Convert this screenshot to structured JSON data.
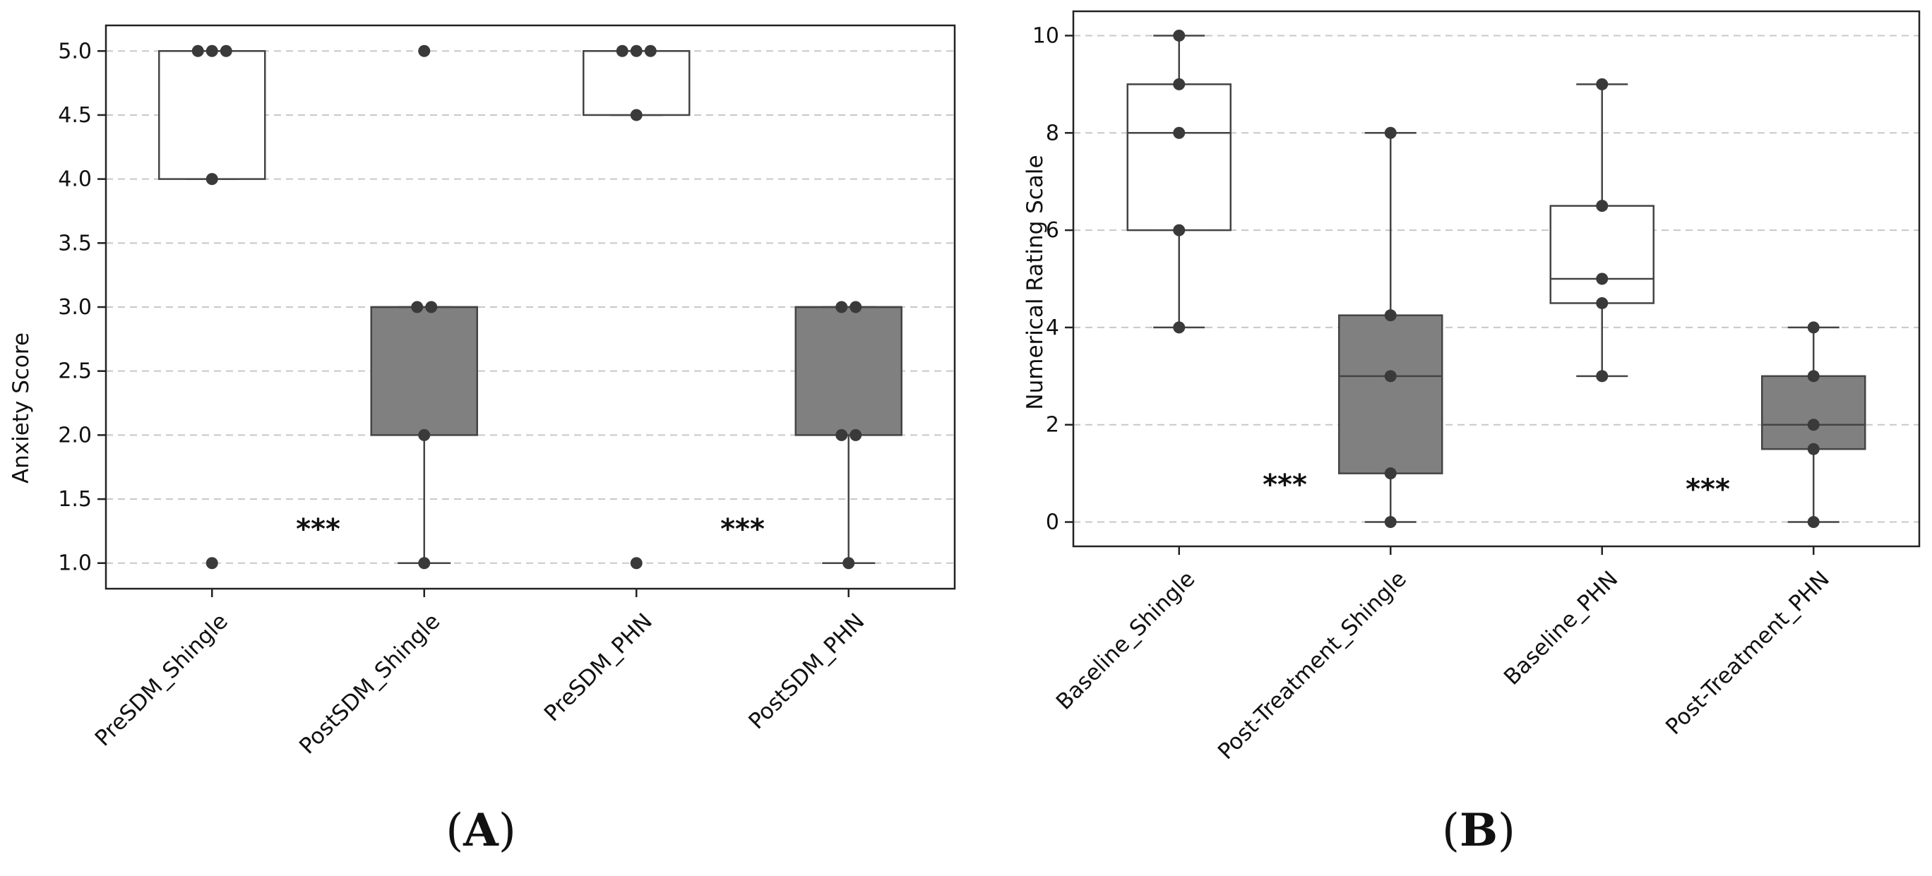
{
  "chart_data": [
    {
      "type": "box",
      "panel_label": "(A)",
      "panel_letter": "A",
      "title": "",
      "xlabel": "",
      "ylabel": "Anxiety Score",
      "ylim": [
        0.8,
        5.2
      ],
      "yticks": [
        1.0,
        1.5,
        2.0,
        2.5,
        3.0,
        3.5,
        4.0,
        4.5,
        5.0
      ],
      "ytick_labels": [
        "1.0",
        "1.5",
        "2.0",
        "2.5",
        "3.0",
        "3.5",
        "4.0",
        "4.5",
        "5.0"
      ],
      "grid": true,
      "categories": [
        "PreSDM_Shingle",
        "PostSDM_Shingle",
        "PreSDM_PHN",
        "PostSDM_PHN"
      ],
      "boxes": [
        {
          "q1": 4.0,
          "median": 5.0,
          "q3": 5.0,
          "whisker_low": 4.0,
          "whisker_high": 5.0,
          "fill": "#ffffff"
        },
        {
          "q1": 2.0,
          "median": 3.0,
          "q3": 3.0,
          "whisker_low": 1.0,
          "whisker_high": 3.0,
          "fill": "#808080"
        },
        {
          "q1": 4.5,
          "median": 5.0,
          "q3": 5.0,
          "whisker_low": 4.5,
          "whisker_high": 5.0,
          "fill": "#ffffff"
        },
        {
          "q1": 2.0,
          "median": 3.0,
          "q3": 3.0,
          "whisker_low": 1.0,
          "whisker_high": 3.0,
          "fill": "#808080"
        }
      ],
      "points": [
        [
          5.0,
          5.0,
          5.0,
          4.0,
          1.0
        ],
        [
          5.0,
          3.0,
          3.0,
          2.0,
          1.0
        ],
        [
          5.0,
          5.0,
          5.0,
          4.5,
          1.0
        ],
        [
          3.0,
          3.0,
          2.0,
          2.0,
          1.0
        ]
      ],
      "annotations": [
        {
          "text": "***",
          "between": [
            0,
            1
          ],
          "y": 1.27
        },
        {
          "text": "***",
          "between": [
            2,
            3
          ],
          "y": 1.27
        }
      ]
    },
    {
      "type": "box",
      "panel_label": "(B)",
      "panel_letter": "B",
      "title": "",
      "xlabel": "",
      "ylabel": "Numerical Rating Scale",
      "ylim": [
        -0.5,
        10.5
      ],
      "yticks": [
        0,
        2,
        4,
        6,
        8,
        10
      ],
      "ytick_labels": [
        "0",
        "2",
        "4",
        "6",
        "8",
        "10"
      ],
      "grid": true,
      "categories": [
        "Baseline_Shingle",
        "Post-Treatment_Shingle",
        "Baseline_PHN",
        "Post-Treatment_PHN"
      ],
      "boxes": [
        {
          "q1": 6.0,
          "median": 8.0,
          "q3": 9.0,
          "whisker_low": 4.0,
          "whisker_high": 10.0,
          "fill": "#ffffff"
        },
        {
          "q1": 1.0,
          "median": 3.0,
          "q3": 4.25,
          "whisker_low": 0.0,
          "whisker_high": 8.0,
          "fill": "#808080"
        },
        {
          "q1": 4.5,
          "median": 5.0,
          "q3": 6.5,
          "whisker_low": 3.0,
          "whisker_high": 9.0,
          "fill": "#ffffff"
        },
        {
          "q1": 1.5,
          "median": 2.0,
          "q3": 3.0,
          "whisker_low": 0.0,
          "whisker_high": 4.0,
          "fill": "#808080"
        }
      ],
      "points": [
        [
          10,
          9,
          8,
          6,
          4
        ],
        [
          8,
          4.25,
          3,
          1,
          0
        ],
        [
          9,
          6.5,
          5,
          4.5,
          3
        ],
        [
          4,
          3,
          2,
          1.5,
          0
        ]
      ],
      "annotations": [
        {
          "text": "***",
          "between": [
            0,
            1
          ],
          "y": 0.78
        },
        {
          "text": "***",
          "between": [
            2,
            3
          ],
          "y": 0.68
        }
      ]
    }
  ],
  "labels": {
    "left_paren": "(",
    "right_paren": ")"
  }
}
